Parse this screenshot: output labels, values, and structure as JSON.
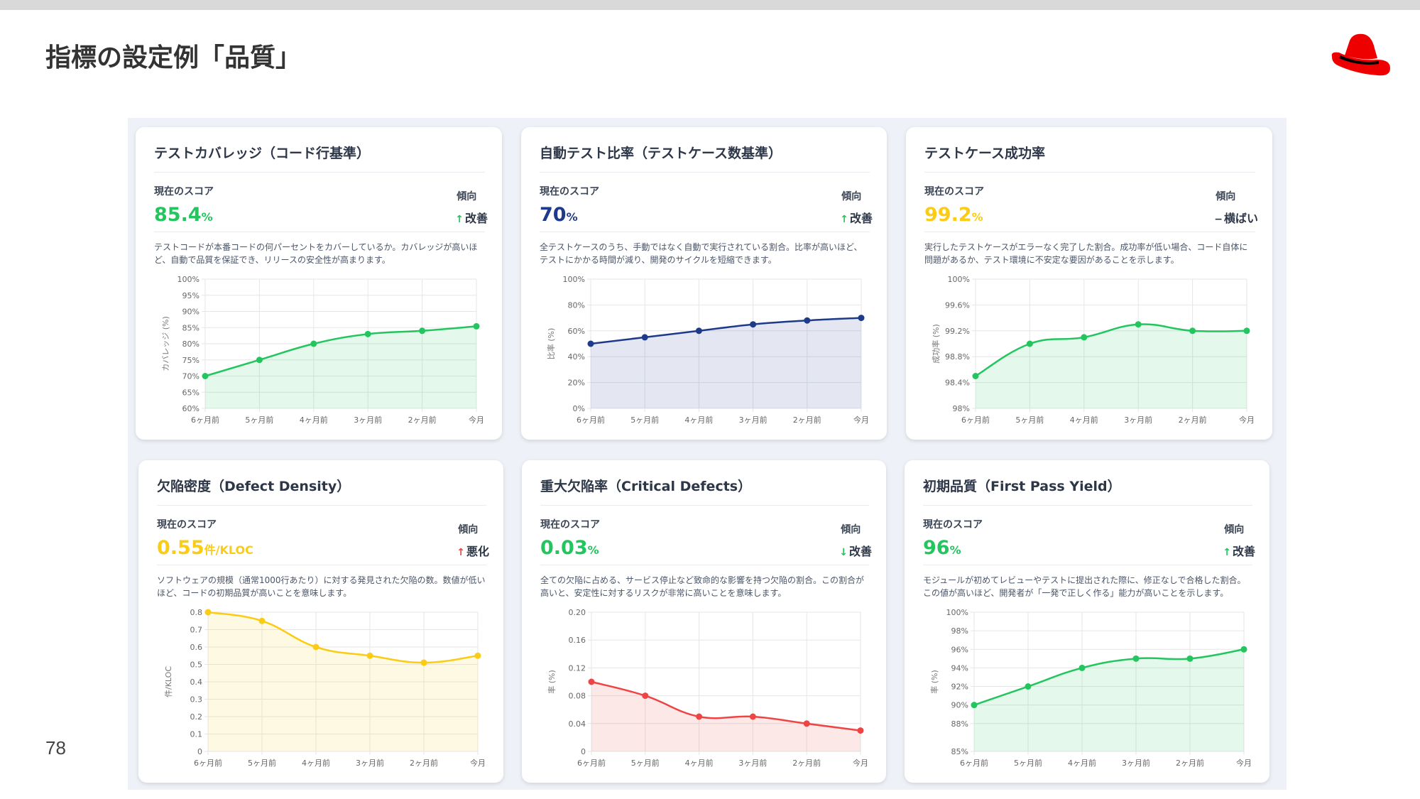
{
  "page": {
    "title": "指標の設定例「品質」",
    "page_number": "78",
    "logo": "Red Hat"
  },
  "colors": {
    "green": "#22c55e",
    "blue": "#1e3a8a",
    "yellow": "#facc15",
    "red": "#ef4444"
  },
  "labels": {
    "score": "現在のスコア",
    "trend": "傾向"
  },
  "cards": [
    {
      "title": "テストカバレッジ（コード行基準）",
      "score": "85.4",
      "unit": "%",
      "score_color": "green",
      "trend_arrow": "↑",
      "trend_arrow_color": "green",
      "trend": "改善",
      "description": "テストコードが本番コードの何パーセントをカバーしているか。カバレッジが高いほど、自動で品質を保証でき、リリースの安全性が高まります。"
    },
    {
      "title": "自動テスト比率（テストケース数基準）",
      "score": "70",
      "unit": "%",
      "score_color": "blue",
      "trend_arrow": "↑",
      "trend_arrow_color": "green",
      "trend": "改善",
      "description": "全テストケースのうち、手動ではなく自動で実行されている割合。比率が高いほど、テストにかかる時間が減り、開発のサイクルを短縮できます。"
    },
    {
      "title": "テストケース成功率",
      "score": "99.2",
      "unit": "%",
      "score_color": "yellow",
      "trend_arrow": "−",
      "trend_arrow_color": "dark",
      "trend": "横ばい",
      "description": "実行したテストケースがエラーなく完了した割合。成功率が低い場合、コード自体に問題があるか、テスト環境に不安定な要因があることを示します。"
    },
    {
      "title": "欠陥密度（Defect Density）",
      "score": "0.55",
      "unit": "件/KLOC",
      "score_color": "yellow",
      "trend_arrow": "↑",
      "trend_arrow_color": "red",
      "trend": "悪化",
      "description": "ソフトウェアの規模（通常1000行あたり）に対する発見された欠陥の数。数値が低いほど、コードの初期品質が高いことを意味します。"
    },
    {
      "title": "重大欠陥率（Critical Defects）",
      "score": "0.03",
      "unit": "%",
      "score_color": "green",
      "trend_arrow": "↓",
      "trend_arrow_color": "green",
      "trend": "改善",
      "description": "全ての欠陥に占める、サービス停止など致命的な影響を持つ欠陥の割合。この割合が高いと、安定性に対するリスクが非常に高いことを意味します。"
    },
    {
      "title": "初期品質（First Pass Yield）",
      "score": "96",
      "unit": "%",
      "score_color": "green",
      "trend_arrow": "↑",
      "trend_arrow_color": "green",
      "trend": "改善",
      "description": "モジュールが初めてレビューやテストに提出された際に、修正なしで合格した割合。この値が高いほど、開発者が「一発で正しく作る」能力が高いことを示します。"
    }
  ],
  "chart_data": [
    {
      "type": "line",
      "categories": [
        "6ヶ月前",
        "5ヶ月前",
        "4ヶ月前",
        "3ヶ月前",
        "2ヶ月前",
        "今月"
      ],
      "values": [
        70,
        75,
        80,
        83,
        84,
        85.4
      ],
      "ylabel": "カバレッジ (%)",
      "ylim": [
        60,
        100
      ],
      "yticks": [
        60,
        65,
        70,
        75,
        80,
        85,
        90,
        95,
        100
      ],
      "tick_labels": [
        "60%",
        "65%",
        "70%",
        "75%",
        "80%",
        "85%",
        "90%",
        "95%",
        "100%"
      ],
      "color": "green",
      "grid": true
    },
    {
      "type": "line",
      "categories": [
        "6ヶ月前",
        "5ヶ月前",
        "4ヶ月前",
        "3ヶ月前",
        "2ヶ月前",
        "今月"
      ],
      "values": [
        50,
        55,
        60,
        65,
        68,
        70
      ],
      "ylabel": "比率 (%)",
      "ylim": [
        0,
        100
      ],
      "yticks": [
        0,
        20,
        40,
        60,
        80,
        100
      ],
      "tick_labels": [
        "0%",
        "20%",
        "40%",
        "60%",
        "80%",
        "100%"
      ],
      "color": "blue",
      "grid": true
    },
    {
      "type": "line",
      "categories": [
        "6ヶ月前",
        "5ヶ月前",
        "4ヶ月前",
        "3ヶ月前",
        "2ヶ月前",
        "今月"
      ],
      "values": [
        98.5,
        99.0,
        99.1,
        99.3,
        99.2,
        99.2
      ],
      "ylabel": "成功率 (%)",
      "ylim": [
        98,
        100
      ],
      "yticks": [
        98,
        98.4,
        98.8,
        99.2,
        99.6,
        100
      ],
      "tick_labels": [
        "98%",
        "98.4%",
        "98.8%",
        "99.2%",
        "99.6%",
        "100%"
      ],
      "color": "green",
      "grid": true
    },
    {
      "type": "line",
      "categories": [
        "6ヶ月前",
        "5ヶ月前",
        "4ヶ月前",
        "3ヶ月前",
        "2ヶ月前",
        "今月"
      ],
      "values": [
        0.8,
        0.75,
        0.6,
        0.55,
        0.51,
        0.55
      ],
      "ylabel": "件/KLOC",
      "ylim": [
        0,
        0.8
      ],
      "yticks": [
        0,
        0.1,
        0.2,
        0.3,
        0.4,
        0.5,
        0.6,
        0.7,
        0.8
      ],
      "tick_labels": [
        "0",
        "0.1",
        "0.2",
        "0.3",
        "0.4",
        "0.5",
        "0.6",
        "0.7",
        "0.8"
      ],
      "color": "yellow",
      "grid": true
    },
    {
      "type": "line",
      "categories": [
        "6ヶ月前",
        "5ヶ月前",
        "4ヶ月前",
        "3ヶ月前",
        "2ヶ月前",
        "今月"
      ],
      "values": [
        0.1,
        0.08,
        0.05,
        0.05,
        0.04,
        0.03
      ],
      "ylabel": "率 (%)",
      "ylim": [
        0,
        0.2
      ],
      "yticks": [
        0,
        0.04,
        0.08,
        0.12,
        0.16,
        0.2
      ],
      "tick_labels": [
        "0",
        "0.04",
        "0.08",
        "0.12",
        "0.16",
        "0.20"
      ],
      "color": "red",
      "grid": true
    },
    {
      "type": "line",
      "categories": [
        "6ヶ月前",
        "5ヶ月前",
        "4ヶ月前",
        "3ヶ月前",
        "2ヶ月前",
        "今月"
      ],
      "values": [
        90,
        92,
        94,
        95,
        95,
        96
      ],
      "ylabel": "率 (%)",
      "ylim": [
        85,
        100
      ],
      "yticks": [
        85,
        88,
        90,
        92,
        94,
        96,
        98,
        100
      ],
      "tick_labels": [
        "85%",
        "88%",
        "90%",
        "92%",
        "94%",
        "96%",
        "98%",
        "100%"
      ],
      "color": "green",
      "grid": true
    }
  ]
}
